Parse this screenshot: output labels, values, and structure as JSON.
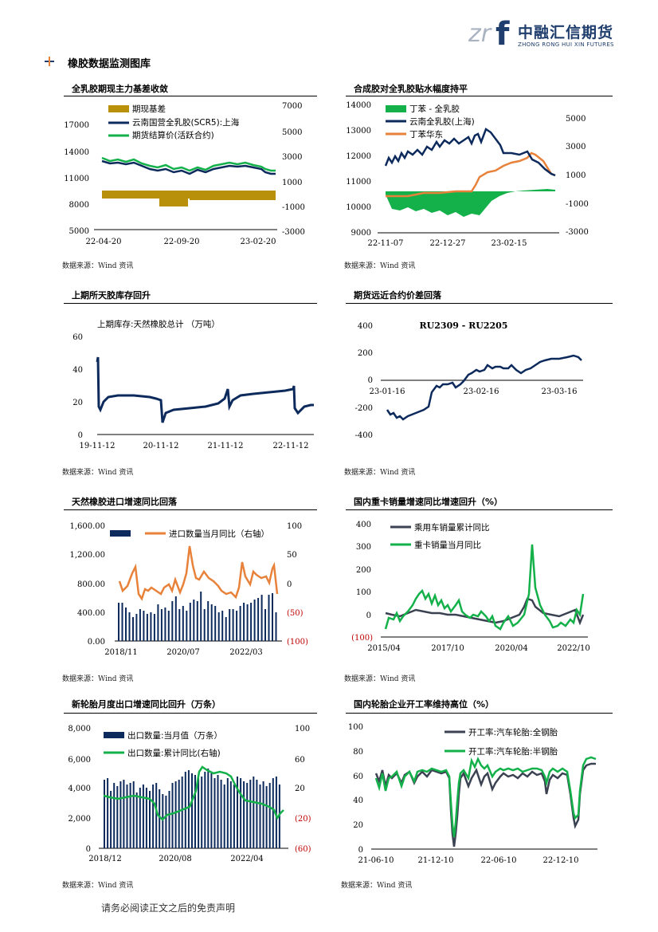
{
  "header": {
    "logo_cn": "中融汇信期货",
    "logo_en": "ZHONG RONG HUI XIN FUTURES",
    "section_title": "橡胶数据监测图库"
  },
  "colors": {
    "navy": "#0d2a5c",
    "green": "#14b14b",
    "orange": "#e8823a",
    "gold": "#b8900a",
    "dark_gray": "#3b4251",
    "red_label": "#c00000"
  },
  "footer": "请务必阅读正文之后的免责声明",
  "charts": [
    {
      "title": "全乳胶期现主力基差收敛",
      "source": "数据来源：Wind 资讯",
      "legend": [
        "期现基差",
        "云南国营全乳胶(SCR5):上海",
        "期货结算价(活跃合约)"
      ],
      "left_ticks": [
        "17000",
        "14000",
        "11000",
        "8000",
        "5000"
      ],
      "right_ticks": [
        "7000",
        "5000",
        "3000",
        "1000",
        "-1000",
        "-3000"
      ],
      "x_ticks": [
        "22-04-20",
        "22-09-20",
        "23-02-20"
      ]
    },
    {
      "title": "合成胶对全乳胶贴水幅度持平",
      "source": "数据来源：Wind 资讯",
      "legend": [
        "丁苯 - 全乳胶",
        "云南全乳胶(上海)",
        "丁苯华东"
      ],
      "left_ticks": [
        "14000",
        "13000",
        "12000",
        "11000",
        "10000",
        "9000"
      ],
      "right_ticks": [
        "5000",
        "3000",
        "1000",
        "-1000",
        "-3000"
      ],
      "x_ticks": [
        "22-11-07",
        "22-12-27",
        "23-02-15"
      ]
    },
    {
      "title": "上期所天胶库存回升",
      "source": "数据来源：Wind 资讯",
      "inner_title": "上期库存:天然橡胶总计   （万吨）",
      "left_ticks": [
        "60",
        "40",
        "20",
        "0"
      ],
      "x_ticks": [
        "19-11-12",
        "20-11-12",
        "21-11-12",
        "22-11-12"
      ]
    },
    {
      "title": "期货远近合约价差回落",
      "source": "数据来源：Wind 资讯",
      "inner_title": "RU2309 - RU2205",
      "left_ticks": [
        "400",
        "200",
        "0",
        "-200",
        "-400"
      ],
      "x_ticks": [
        "23-01-16",
        "23-02-16",
        "23-03-16"
      ]
    },
    {
      "title": "天然橡胶进口增速同比回落",
      "source": "数据来源：Wind 资讯",
      "legend": [
        "进口数量当月同比（右轴）"
      ],
      "left_ticks": [
        "1,600.00",
        "1,200.00",
        "800.00",
        "400.00",
        "0.00"
      ],
      "right_ticks": [
        "100",
        "50",
        "0",
        "(50)",
        "(100)"
      ],
      "x_ticks": [
        "2018/11",
        "2020/07",
        "2022/03"
      ]
    },
    {
      "title": "国内重卡销量增速同比增速回升（%）",
      "source": "数据来源：Wind 资讯",
      "legend": [
        "乘用车销量累计同比",
        "重卡销量当月同比"
      ],
      "left_ticks": [
        "400",
        "300",
        "200",
        "100",
        "0",
        "(100)"
      ],
      "x_ticks": [
        "2015/04",
        "2017/10",
        "2020/04",
        "2022/10"
      ]
    },
    {
      "title": "新轮胎月度出口增速同比回升（万条）",
      "source": "数据来源：Wind 资讯",
      "legend": [
        "出口数量:当月值（万条）",
        "出口数量:累计同比(右轴)"
      ],
      "left_ticks": [
        "8,000",
        "6,000",
        "4,000",
        "2,000",
        "0"
      ],
      "right_ticks": [
        "100",
        "60",
        "20",
        "(20)",
        "(60)"
      ],
      "x_ticks": [
        "2018/12",
        "2020/08",
        "2022/04"
      ]
    },
    {
      "title": "国内轮胎企业开工率维持高位（%）",
      "source": "数据来源：Wind 资讯",
      "legend": [
        "开工率:汽车轮胎:全钢胎",
        "开工率:汽车轮胎:半钢胎"
      ],
      "left_ticks": [
        "100",
        "80",
        "60",
        "40",
        "20",
        "0"
      ],
      "x_ticks": [
        "21-06-10",
        "21-12-10",
        "22-06-10",
        "22-12-10"
      ]
    }
  ]
}
